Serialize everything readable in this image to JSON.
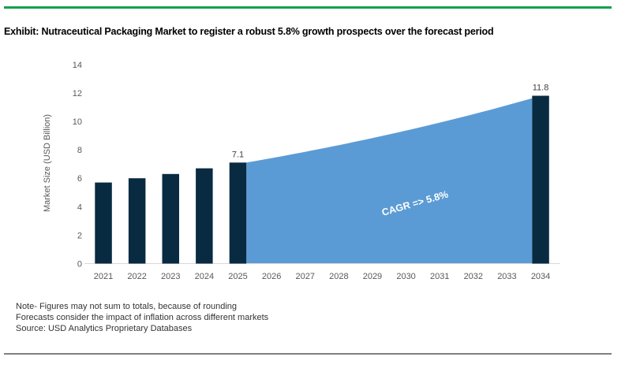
{
  "header": {
    "title": "Exhibit: Nutraceutical Packaging Market to register a robust 5.8% growth prospects over the forecast period"
  },
  "chart_data": {
    "type": "bar",
    "title": "Exhibit: Nutraceutical Packaging Market to register a robust 5.8% growth prospects over the forecast period",
    "xlabel": "",
    "ylabel": "Market Size (USD Billion)",
    "ylim": [
      0,
      14
    ],
    "ytick_step": 2,
    "grid": "off",
    "legend": "none",
    "categories": [
      "2021",
      "2022",
      "2023",
      "2024",
      "2025",
      "2026",
      "2027",
      "2028",
      "2029",
      "2030",
      "2031",
      "2032",
      "2033",
      "2034"
    ],
    "bars": [
      {
        "category": "2021",
        "value": 5.7,
        "label": ""
      },
      {
        "category": "2022",
        "value": 6.0,
        "label": ""
      },
      {
        "category": "2023",
        "value": 6.3,
        "label": ""
      },
      {
        "category": "2024",
        "value": 6.7,
        "label": ""
      },
      {
        "category": "2025",
        "value": 7.1,
        "label": "7.1"
      },
      {
        "category": "2034",
        "value": 11.8,
        "label": "11.8"
      }
    ],
    "forecast_area": {
      "from": "2025",
      "to": "2034",
      "from_value": 7.1,
      "to_value": 11.8,
      "interpolation": "exponential",
      "label": "CAGR => 5.8%"
    }
  },
  "footnotes": {
    "lines": [
      "Note- Figures may not sum to totals, because of rounding",
      "Forecasts consider the impact of inflation across different markets",
      "Source: USD Analytics Proprietary Databases"
    ]
  },
  "colors": {
    "bar": "#082B42",
    "area": "#5B9BD5",
    "accent_green": "#12A24B",
    "rule_gray": "#7F7F7F",
    "axis_line": "#D9D9D9",
    "axis_text": "#595959",
    "data_label_text": "#404040",
    "cagr_text": "#FFFFFF"
  }
}
